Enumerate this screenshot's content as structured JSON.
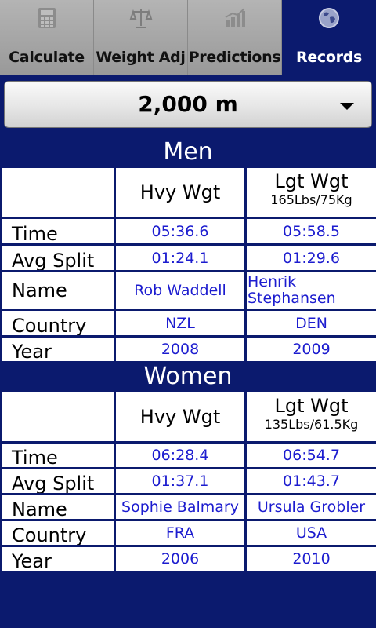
{
  "tabs": [
    {
      "label": "Calculate",
      "icon": "calculator-icon"
    },
    {
      "label": "Weight Adj",
      "icon": "scale-icon"
    },
    {
      "label": "Predictions",
      "icon": "bar-chart-icon"
    },
    {
      "label": "Records",
      "icon": "globe-icon",
      "active": true
    }
  ],
  "selector": {
    "value": "2,000 m"
  },
  "men": {
    "title": "Men",
    "headers": {
      "heavy": "Hvy Wgt",
      "light": "Lgt Wgt",
      "light_sub": "165Lbs/75Kg"
    },
    "rows": {
      "time": {
        "label": "Time",
        "heavy": "05:36.6",
        "light": "05:58.5"
      },
      "split": {
        "label": "Avg Split",
        "heavy": "01:24.1",
        "light": "01:29.6"
      },
      "name": {
        "label": "Name",
        "heavy": "Rob Waddell",
        "light": "Henrik Stephansen"
      },
      "country": {
        "label": "Country",
        "heavy": "NZL",
        "light": "DEN"
      },
      "year": {
        "label": "Year",
        "heavy": "2008",
        "light": "2009"
      }
    }
  },
  "women": {
    "title": "Women",
    "headers": {
      "heavy": "Hvy Wgt",
      "light": "Lgt Wgt",
      "light_sub": "135Lbs/61.5Kg"
    },
    "rows": {
      "time": {
        "label": "Time",
        "heavy": "06:28.4",
        "light": "06:54.7"
      },
      "split": {
        "label": "Avg Split",
        "heavy": "01:37.1",
        "light": "01:43.7"
      },
      "name": {
        "label": "Name",
        "heavy": "Sophie Balmary",
        "light": "Ursula Grobler"
      },
      "country": {
        "label": "Country",
        "heavy": "FRA",
        "light": "USA"
      },
      "year": {
        "label": "Year",
        "heavy": "2006",
        "light": "2010"
      }
    }
  }
}
